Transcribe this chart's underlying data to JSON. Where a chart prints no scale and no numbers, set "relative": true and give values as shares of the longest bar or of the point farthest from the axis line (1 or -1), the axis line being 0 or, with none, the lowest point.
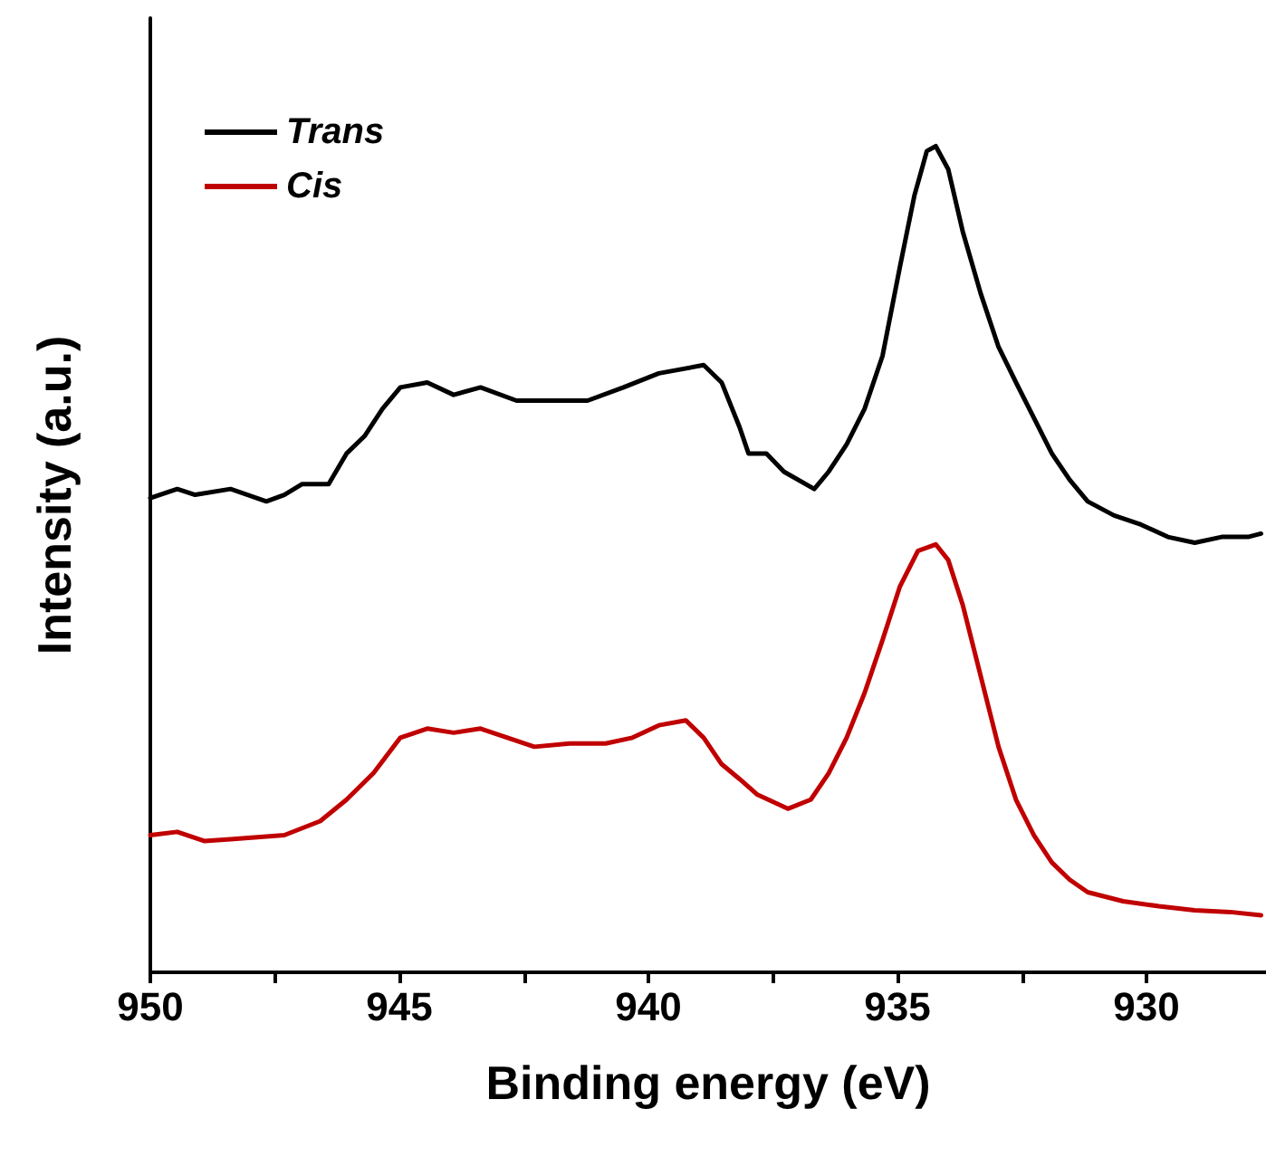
{
  "chart_data": {
    "type": "line",
    "relative": true,
    "xlabel": "Binding energy (eV)",
    "ylabel": "Intensity (a.u.)",
    "xlim": [
      950,
      927.6
    ],
    "xticks": [
      950,
      {
        "value": 947.5,
        "label": null
      },
      945,
      {
        "value": 942.5,
        "label": null
      },
      940,
      {
        "value": 937.5,
        "label": null
      },
      935,
      {
        "value": 932.5,
        "label": null
      },
      930
    ],
    "legend": "top left",
    "grid": false,
    "marker": "none",
    "line_style": "solid",
    "x": [
      950.0,
      949.46,
      949.1,
      948.39,
      947.67,
      947.31,
      946.95,
      946.42,
      946.06,
      945.7,
      945.34,
      944.98,
      944.44,
      943.91,
      943.37,
      942.65,
      941.94,
      941.22,
      940.5,
      939.79,
      938.89,
      938.53,
      938.17,
      937.99,
      937.63,
      937.28,
      936.67,
      936.38,
      936.02,
      935.66,
      935.3,
      934.95,
      934.66,
      934.41,
      934.23,
      933.98,
      933.69,
      933.33,
      932.97,
      932.62,
      932.26,
      931.9,
      931.54,
      931.18,
      930.65,
      930.11,
      929.57,
      929.03,
      928.49,
      927.96,
      927.7
    ],
    "series": [
      {
        "name": "Trans",
        "color": "#000000",
        "values": [
          0.574,
          0.585,
          0.578,
          0.585,
          0.57,
          0.578,
          0.591,
          0.591,
          0.628,
          0.649,
          0.682,
          0.708,
          0.714,
          0.699,
          0.708,
          0.692,
          0.692,
          0.692,
          0.708,
          0.725,
          0.735,
          0.714,
          0.66,
          0.628,
          0.628,
          0.606,
          0.585,
          0.606,
          0.639,
          0.682,
          0.746,
          0.854,
          0.94,
          0.994,
          1.0,
          0.972,
          0.897,
          0.822,
          0.757,
          0.714,
          0.671,
          0.628,
          0.596,
          0.57,
          0.553,
          0.542,
          0.527,
          0.52,
          0.527,
          0.527,
          0.531
        ]
      },
      {
        "name": "Cis",
        "color": "#c00000",
        "x": [
          950.0,
          949.46,
          948.92,
          948.39,
          947.31,
          946.59,
          946.06,
          945.52,
          944.98,
          944.44,
          943.91,
          943.37,
          942.83,
          942.29,
          941.58,
          940.86,
          940.32,
          939.79,
          939.25,
          938.89,
          938.53,
          938.17,
          937.81,
          937.2,
          936.74,
          936.38,
          936.02,
          935.66,
          935.3,
          934.95,
          934.59,
          934.23,
          933.98,
          933.69,
          933.33,
          932.97,
          932.62,
          932.26,
          931.9,
          931.54,
          931.18,
          930.47,
          929.75,
          929.03,
          928.32,
          927.7
        ],
        "values": [
          0.166,
          0.17,
          0.159,
          0.161,
          0.166,
          0.183,
          0.209,
          0.241,
          0.284,
          0.295,
          0.29,
          0.295,
          0.284,
          0.273,
          0.277,
          0.277,
          0.284,
          0.299,
          0.305,
          0.284,
          0.252,
          0.234,
          0.215,
          0.198,
          0.209,
          0.241,
          0.284,
          0.338,
          0.402,
          0.467,
          0.51,
          0.518,
          0.499,
          0.445,
          0.359,
          0.273,
          0.209,
          0.166,
          0.133,
          0.112,
          0.097,
          0.086,
          0.08,
          0.075,
          0.073,
          0.069
        ]
      }
    ]
  }
}
